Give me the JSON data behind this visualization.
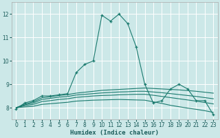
{
  "xlabel": "Humidex (Indice chaleur)",
  "bg_color": "#cce8e8",
  "grid_color": "#ffffff",
  "line_color": "#1a7a6e",
  "xlim": [
    -0.5,
    23.5
  ],
  "ylim": [
    7.5,
    12.5
  ],
  "yticks": [
    8,
    9,
    10,
    11,
    12
  ],
  "xticks": [
    0,
    1,
    2,
    3,
    4,
    5,
    6,
    7,
    8,
    9,
    10,
    11,
    12,
    13,
    14,
    15,
    16,
    17,
    18,
    19,
    20,
    21,
    22,
    23
  ],
  "series": [
    {
      "x": [
        0,
        1,
        2,
        3,
        4,
        5,
        6,
        7,
        8,
        9,
        10,
        11,
        12,
        13,
        14,
        15,
        16,
        17,
        18,
        19,
        20,
        21,
        22,
        23
      ],
      "y": [
        7.95,
        8.2,
        8.3,
        8.5,
        8.5,
        8.55,
        8.6,
        9.5,
        9.85,
        10.0,
        11.95,
        11.7,
        12.0,
        11.6,
        10.6,
        9.0,
        8.2,
        8.3,
        8.8,
        9.0,
        8.8,
        8.3,
        8.3,
        7.7
      ],
      "marker": true
    },
    {
      "x": [
        0,
        1,
        2,
        3,
        4,
        5,
        6,
        7,
        8,
        9,
        10,
        11,
        12,
        13,
        14,
        15,
        16,
        17,
        18,
        19,
        20,
        21,
        22,
        23
      ],
      "y": [
        8.0,
        8.15,
        8.25,
        8.42,
        8.47,
        8.52,
        8.56,
        8.62,
        8.66,
        8.7,
        8.74,
        8.76,
        8.78,
        8.8,
        8.82,
        8.84,
        8.82,
        8.8,
        8.78,
        8.76,
        8.73,
        8.7,
        8.66,
        8.62
      ],
      "marker": false
    },
    {
      "x": [
        0,
        1,
        2,
        3,
        4,
        5,
        6,
        7,
        8,
        9,
        10,
        11,
        12,
        13,
        14,
        15,
        16,
        17,
        18,
        19,
        20,
        21,
        22,
        23
      ],
      "y": [
        8.0,
        8.12,
        8.2,
        8.35,
        8.4,
        8.45,
        8.48,
        8.54,
        8.57,
        8.6,
        8.63,
        8.65,
        8.67,
        8.68,
        8.7,
        8.7,
        8.67,
        8.64,
        8.6,
        8.56,
        8.52,
        8.48,
        8.43,
        8.38
      ],
      "marker": false
    },
    {
      "x": [
        0,
        1,
        2,
        3,
        4,
        5,
        6,
        7,
        8,
        9,
        10,
        11,
        12,
        13,
        14,
        15,
        16,
        17,
        18,
        19,
        20,
        21,
        22,
        23
      ],
      "y": [
        8.0,
        8.08,
        8.14,
        8.26,
        8.3,
        8.35,
        8.38,
        8.44,
        8.47,
        8.5,
        8.52,
        8.53,
        8.55,
        8.56,
        8.57,
        8.57,
        8.53,
        8.48,
        8.43,
        8.38,
        8.33,
        8.28,
        8.22,
        8.16
      ],
      "marker": false
    },
    {
      "x": [
        0,
        1,
        2,
        3,
        4,
        5,
        6,
        7,
        8,
        9,
        10,
        11,
        12,
        13,
        14,
        15,
        16,
        17,
        18,
        19,
        20,
        21,
        22,
        23
      ],
      "y": [
        8.0,
        8.03,
        8.06,
        8.14,
        8.17,
        8.2,
        8.23,
        8.28,
        8.3,
        8.32,
        8.33,
        8.34,
        8.35,
        8.34,
        8.33,
        8.32,
        8.25,
        8.18,
        8.1,
        8.04,
        7.98,
        7.93,
        7.87,
        7.8
      ],
      "marker": false
    }
  ]
}
